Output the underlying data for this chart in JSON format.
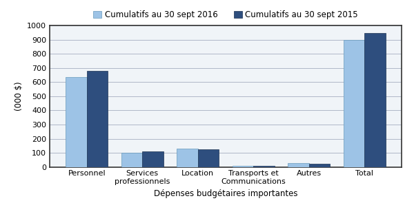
{
  "categories": [
    "Personnel",
    "Services\nprofessionnels",
    "Location",
    "Transports et\nCommunications",
    "Autres",
    "Total"
  ],
  "values_2016": [
    635,
    100,
    130,
    7,
    28,
    900
  ],
  "values_2015": [
    680,
    110,
    123,
    10,
    22,
    950
  ],
  "color_2016": "#9DC3E6",
  "color_2015": "#2E4E7E",
  "legend_2016": "Cumulatifs au 30 sept 2016",
  "legend_2015": "Cumulatifs au 30 sept 2015",
  "ylabel": "(000 $)",
  "xlabel": "Dépenses budgétaires importantes",
  "ylim": [
    0,
    1000
  ],
  "yticks": [
    0,
    100,
    200,
    300,
    400,
    500,
    600,
    700,
    800,
    900,
    1000
  ],
  "background_color": "#ffffff",
  "plot_bg_color": "#f0f4f8",
  "grid_color": "#b0b8c8",
  "bar_width": 0.38,
  "legend_fontsize": 8.5,
  "axis_fontsize": 8.5,
  "tick_fontsize": 8
}
